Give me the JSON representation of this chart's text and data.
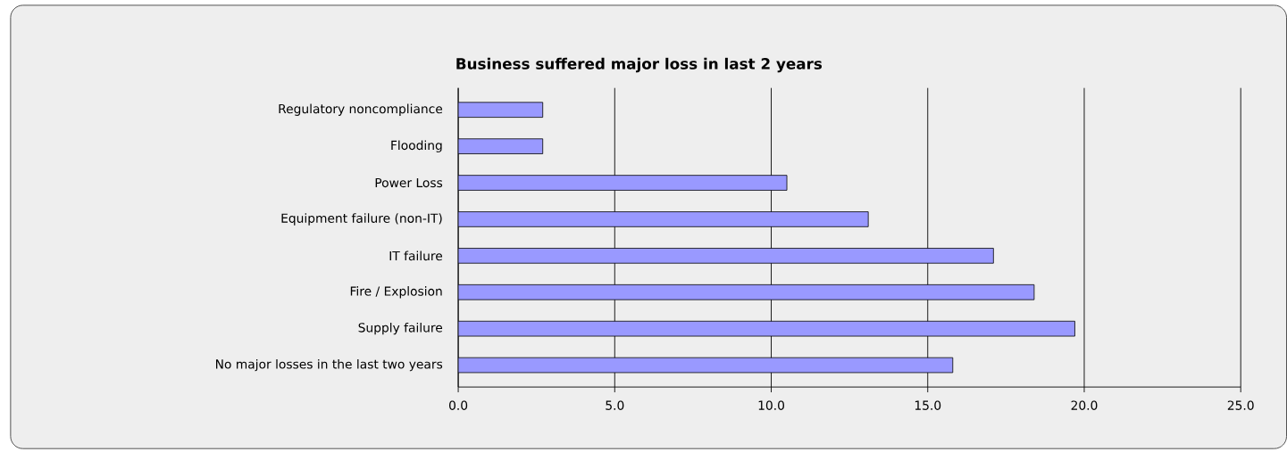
{
  "chart_data": {
    "type": "bar",
    "orientation": "horizontal",
    "title": "Business suffered major loss in last 2 years",
    "categories": [
      "Regulatory noncompliance",
      "Flooding",
      "Power Loss",
      "Equipment failure (non-IT)",
      "IT failure",
      "Fire / Explosion",
      "Supply failure",
      "No major losses in the last two years"
    ],
    "values": [
      2.7,
      2.7,
      10.5,
      13.1,
      17.1,
      18.4,
      19.7,
      15.8
    ],
    "color": "#9999ff",
    "xlim": [
      0,
      25
    ],
    "xticks": [
      {
        "value": 0,
        "label": "0.0"
      },
      {
        "value": 5,
        "label": "5.0"
      },
      {
        "value": 10,
        "label": "10.0"
      },
      {
        "value": 15,
        "label": "15.0"
      },
      {
        "value": 20,
        "label": "20.0"
      },
      {
        "value": 25,
        "label": "25.0"
      }
    ],
    "grid": "x"
  }
}
